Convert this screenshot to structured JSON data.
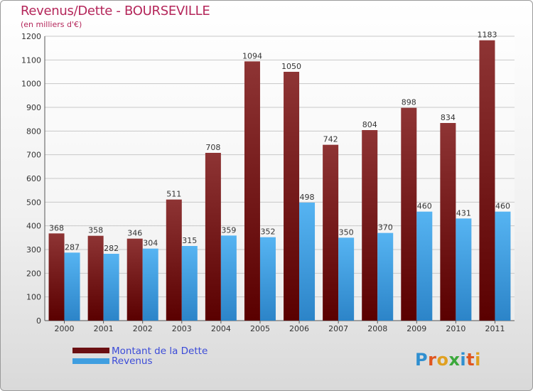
{
  "chart_data": {
    "type": "bar",
    "title": "Revenus/Dette - BOURSEVILLE",
    "subtitle": "(en milliers d'€)",
    "categories": [
      "2000",
      "2001",
      "2002",
      "2003",
      "2004",
      "2005",
      "2006",
      "2007",
      "2008",
      "2009",
      "2010",
      "2011"
    ],
    "series": [
      {
        "name": "Montant de la Dette",
        "values": [
          368,
          358,
          346,
          511,
          708,
          1094,
          1050,
          742,
          804,
          898,
          834,
          1183
        ],
        "color": "#7a1c1c"
      },
      {
        "name": "Revenus",
        "values": [
          287,
          282,
          304,
          315,
          359,
          352,
          498,
          350,
          370,
          460,
          431,
          460
        ],
        "color": "#3f9ee0"
      }
    ],
    "ylim": [
      0,
      1200
    ],
    "yticks": [
      0,
      100,
      200,
      300,
      400,
      500,
      600,
      700,
      800,
      900,
      1000,
      1100,
      1200
    ],
    "grid": true,
    "legend": "bottom-left"
  },
  "legend": {
    "debt_label": "Montant de la Dette",
    "revenue_label": "Revenus",
    "debt_color": "#6b0f12",
    "revenue_color": "#3f9ee0"
  },
  "logo": {
    "text": "Proxiti"
  }
}
